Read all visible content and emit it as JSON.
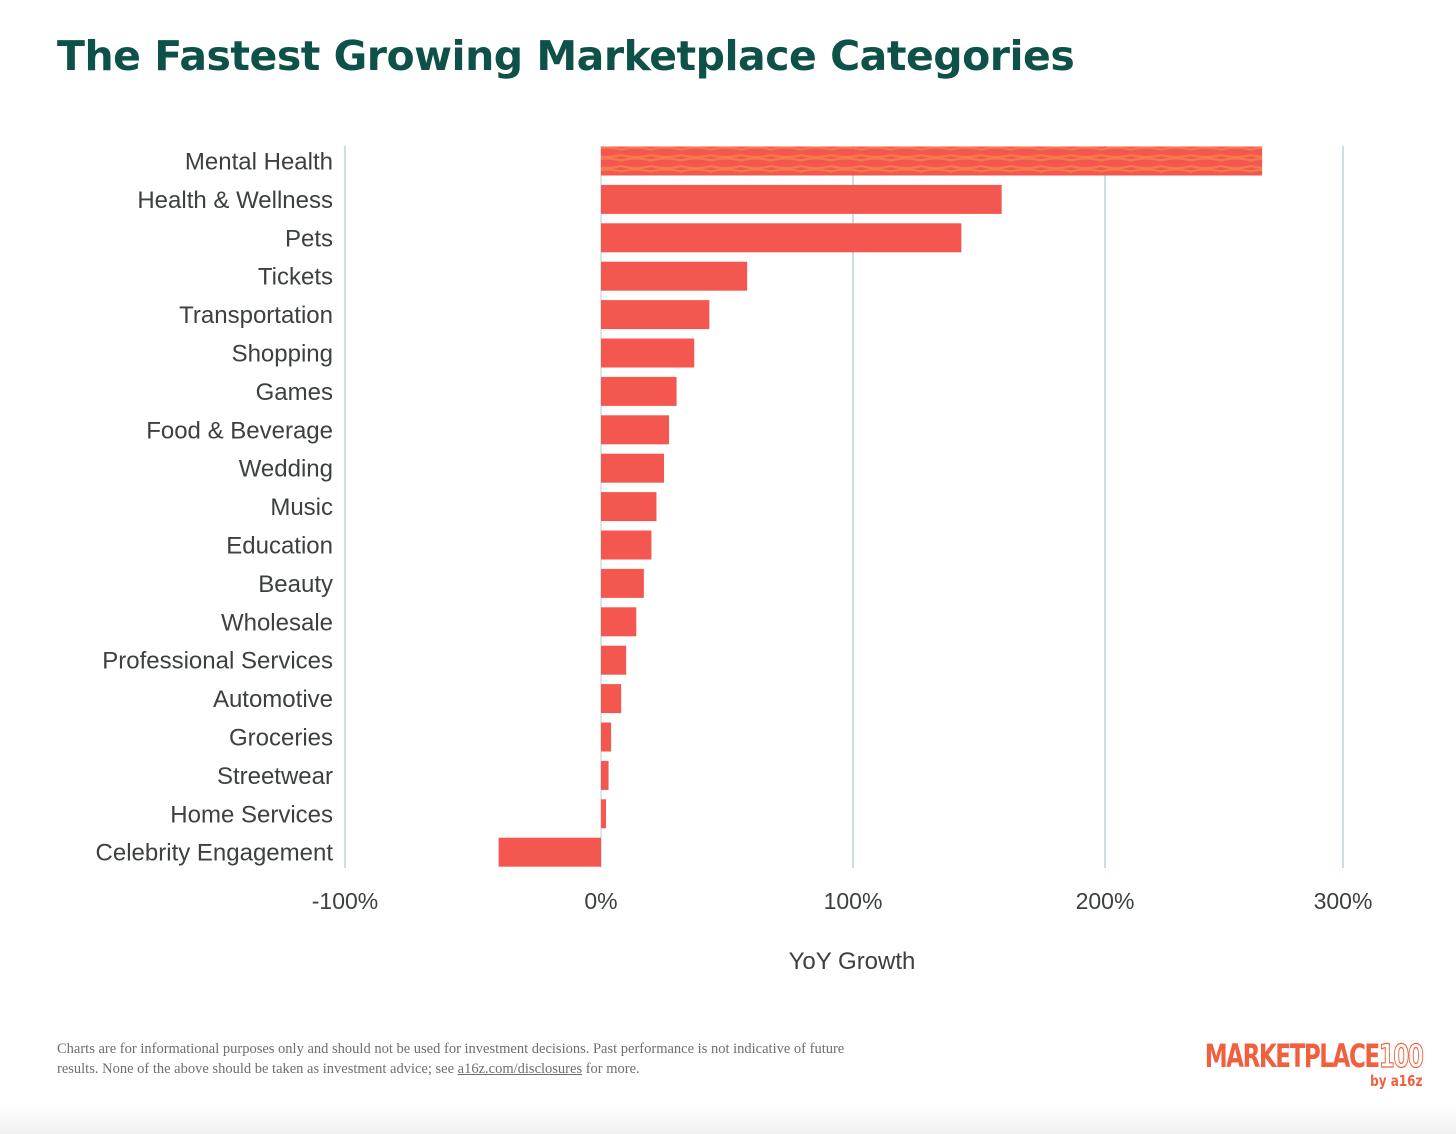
{
  "title": "The Fastest Growing Marketplace Categories",
  "chart_data": {
    "type": "bar",
    "orientation": "horizontal",
    "categories": [
      "Mental Health",
      "Health & Wellness",
      "Pets",
      "Tickets",
      "Transportation",
      "Shopping",
      "Games",
      "Food & Beverage",
      "Wedding",
      "Music",
      "Education",
      "Beauty",
      "Wholesale",
      "Professional Services",
      "Automotive",
      "Groceries",
      "Streetwear",
      "Home Services",
      "Celebrity Engagement"
    ],
    "values": [
      266,
      159,
      143,
      58,
      43,
      37,
      30,
      27,
      25,
      22,
      20,
      17,
      14,
      10,
      8,
      4,
      3,
      2,
      -40
    ],
    "xlabel": "YoY Growth",
    "ylabel": "",
    "xlim": [
      -100,
      300
    ],
    "xticks": [
      -100,
      0,
      100,
      200,
      300
    ],
    "xtick_labels": [
      "-100%",
      "0%",
      "100%",
      "200%",
      "300%"
    ],
    "grid": true,
    "colors": {
      "bar": "#f35750",
      "highlight_stripe": "#f7844a",
      "grid": "#a9cfd0",
      "title": "#0e5149",
      "label": "#3c4040"
    }
  },
  "footer": {
    "disclaimer_text": "Charts are for informational purposes only and should not be used for investment decisions. Past performance is not indicative of future results. None of the above should be taken as investment advice; see ",
    "disclaimer_link": "a16z.com/disclosures",
    "disclaimer_end": " for more.",
    "logo_word": "MARKETPLACE",
    "logo_number": "100",
    "logo_byline": "by a16z"
  }
}
